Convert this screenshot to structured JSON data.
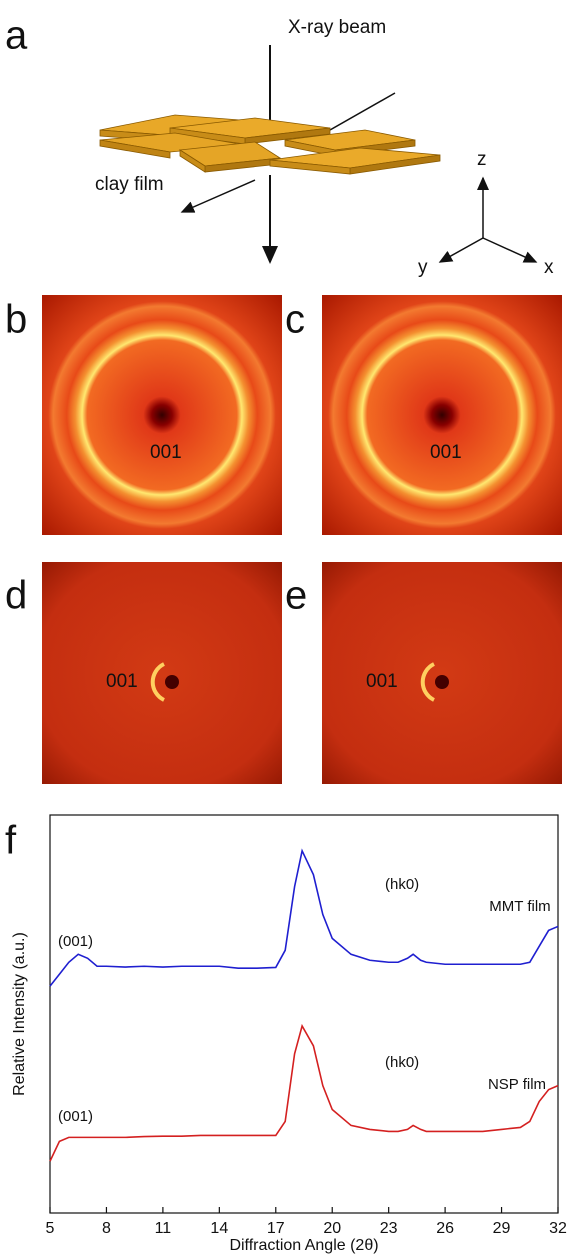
{
  "panel_labels": [
    "a",
    "b",
    "c",
    "d",
    "e",
    "f"
  ],
  "diagram": {
    "beam_label": "X-ray beam",
    "film_label": "clay film",
    "axes": [
      "z",
      "y",
      "x"
    ]
  },
  "patterns": [
    {
      "label": "001"
    },
    {
      "label": "001"
    },
    {
      "label": "001"
    },
    {
      "label": "001"
    }
  ],
  "chart_data": {
    "type": "line",
    "xlabel": "Diffraction Angle (2θ)",
    "ylabel": "Relative Intensity (a.u.)",
    "xlim": [
      5,
      32
    ],
    "xticks": [
      5,
      8,
      11,
      14,
      17,
      20,
      23,
      26,
      29,
      32
    ],
    "ylim": [
      0,
      100
    ],
    "x": [
      5,
      5.5,
      6,
      6.5,
      7,
      7.5,
      8,
      9,
      10,
      11,
      12,
      13,
      14,
      15,
      16,
      17,
      17.5,
      18,
      18.4,
      19,
      19.5,
      20,
      21,
      22,
      23,
      23.5,
      24,
      24.3,
      24.7,
      25,
      26,
      27,
      28,
      29,
      30,
      30.5,
      31,
      31.5,
      32
    ],
    "series": [
      {
        "name": "MMT film",
        "color": "#1f1fd0",
        "values": [
          57,
          60,
          63,
          65,
          64,
          62,
          62,
          61.8,
          62,
          61.8,
          62,
          62,
          62,
          61.5,
          61.5,
          61.7,
          66,
          82,
          91,
          85,
          75,
          69,
          65,
          63.5,
          63,
          63,
          64,
          65,
          63.5,
          63,
          62.5,
          62.5,
          62.5,
          62.5,
          62.5,
          63,
          67,
          71,
          72
        ]
      },
      {
        "name": "NSP film",
        "color": "#d42020",
        "values": [
          13,
          18,
          19,
          19,
          19,
          19,
          19,
          19,
          19.2,
          19.3,
          19.3,
          19.5,
          19.5,
          19.5,
          19.5,
          19.5,
          23,
          40,
          47,
          42,
          32,
          26,
          22,
          21,
          20.5,
          20.5,
          21,
          22,
          21,
          20.5,
          20.5,
          20.5,
          20.5,
          21,
          21.5,
          23,
          28,
          31,
          32
        ]
      }
    ],
    "annotations": [
      "(001)",
      "(hk0)",
      "(001)",
      "(hk0)"
    ]
  }
}
